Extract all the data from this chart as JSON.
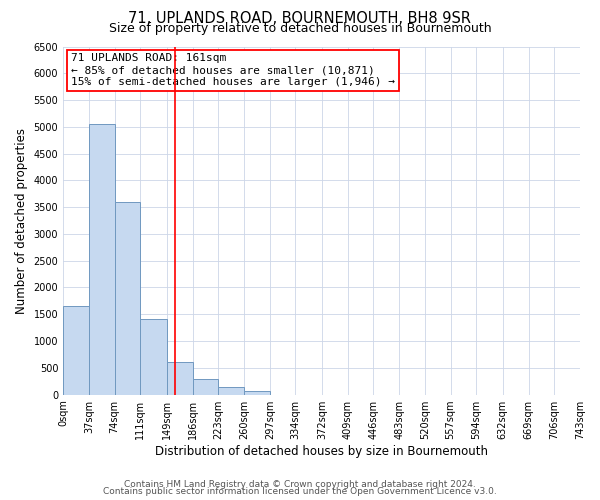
{
  "title": "71, UPLANDS ROAD, BOURNEMOUTH, BH8 9SR",
  "subtitle": "Size of property relative to detached houses in Bournemouth",
  "xlabel": "Distribution of detached houses by size in Bournemouth",
  "ylabel": "Number of detached properties",
  "bin_edges": [
    0,
    37,
    74,
    111,
    149,
    186,
    223,
    260,
    297,
    334,
    372,
    409,
    446,
    483,
    520,
    557,
    594,
    632,
    669,
    706,
    743
  ],
  "bar_heights": [
    1650,
    5050,
    3600,
    1420,
    610,
    300,
    145,
    60,
    0,
    0,
    0,
    0,
    0,
    0,
    0,
    0,
    0,
    0,
    0,
    0
  ],
  "bar_color": "#c6d9f0",
  "bar_edge_color": "#7098c0",
  "property_line_x": 161,
  "property_line_color": "red",
  "annotation_text": "71 UPLANDS ROAD: 161sqm\n← 85% of detached houses are smaller (10,871)\n15% of semi-detached houses are larger (1,946) →",
  "ylim": [
    0,
    6500
  ],
  "yticks": [
    0,
    500,
    1000,
    1500,
    2000,
    2500,
    3000,
    3500,
    4000,
    4500,
    5000,
    5500,
    6000,
    6500
  ],
  "footer_line1": "Contains HM Land Registry data © Crown copyright and database right 2024.",
  "footer_line2": "Contains public sector information licensed under the Open Government Licence v3.0.",
  "background_color": "#ffffff",
  "grid_color": "#ccd6e8",
  "title_fontsize": 10.5,
  "subtitle_fontsize": 9,
  "axis_label_fontsize": 8.5,
  "tick_fontsize": 7,
  "annotation_fontsize": 8,
  "footer_fontsize": 6.5
}
